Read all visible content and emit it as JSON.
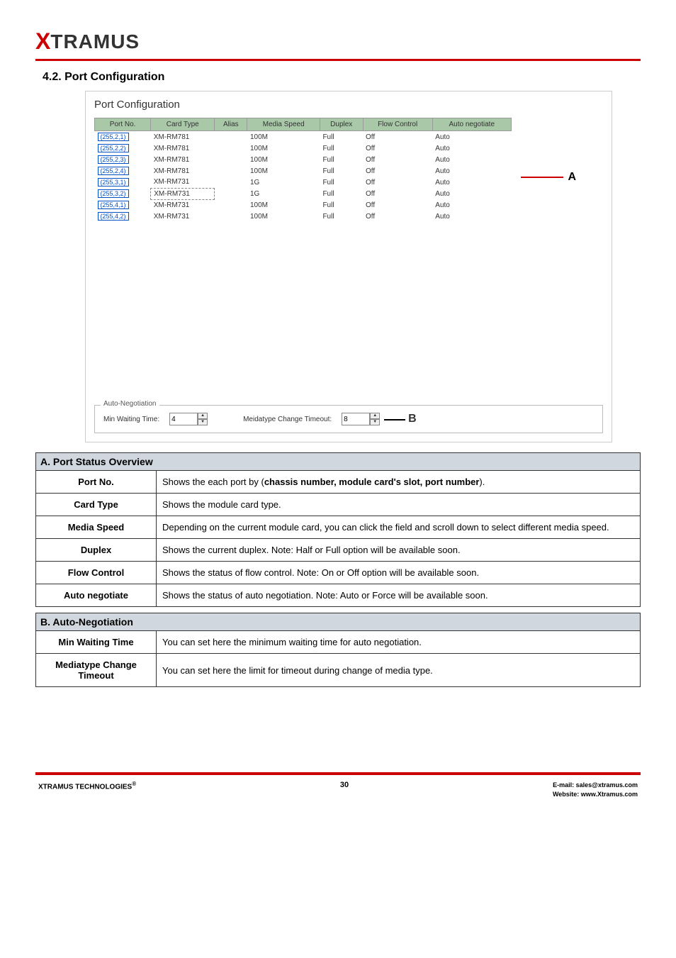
{
  "logo": {
    "brand_x": "X",
    "brand_rest": "TRAMUS"
  },
  "heading": "4.2. Port Configuration",
  "panel": {
    "title": "Port Configuration",
    "columns": [
      "Port No.",
      "Card Type",
      "Alias",
      "Media Speed",
      "Duplex",
      "Flow Control",
      "Auto negotiate"
    ],
    "rows": [
      {
        "port": "(255,2,1)",
        "card": "XM-RM781",
        "alias": "",
        "speed": "100M",
        "duplex": "Full",
        "flow": "Off",
        "neg": "Auto",
        "sel": false
      },
      {
        "port": "(255,2,2)",
        "card": "XM-RM781",
        "alias": "",
        "speed": "100M",
        "duplex": "Full",
        "flow": "Off",
        "neg": "Auto",
        "sel": false
      },
      {
        "port": "(255,2,3)",
        "card": "XM-RM781",
        "alias": "",
        "speed": "100M",
        "duplex": "Full",
        "flow": "Off",
        "neg": "Auto",
        "sel": false
      },
      {
        "port": "(255,2,4)",
        "card": "XM-RM781",
        "alias": "",
        "speed": "100M",
        "duplex": "Full",
        "flow": "Off",
        "neg": "Auto",
        "sel": false
      },
      {
        "port": "(255,3,1)",
        "card": "XM-RM731",
        "alias": "",
        "speed": "1G",
        "duplex": "Full",
        "flow": "Off",
        "neg": "Auto",
        "sel": false
      },
      {
        "port": "(255,3,2)",
        "card": "XM-RM731",
        "alias": "",
        "speed": "1G",
        "duplex": "Full",
        "flow": "Off",
        "neg": "Auto",
        "sel": true
      },
      {
        "port": "(255,4,1)",
        "card": "XM-RM731",
        "alias": "",
        "speed": "100M",
        "duplex": "Full",
        "flow": "Off",
        "neg": "Auto",
        "sel": false
      },
      {
        "port": "(255,4,2)",
        "card": "XM-RM731",
        "alias": "",
        "speed": "100M",
        "duplex": "Full",
        "flow": "Off",
        "neg": "Auto",
        "sel": false
      }
    ],
    "label_a": "A",
    "auto_neg": {
      "group_label": "Auto-Negotiation",
      "min_wait_label": "Min Waiting Time:",
      "min_wait_value": "4",
      "media_timeout_label": "Meidatype Change Timeout:",
      "media_timeout_value": "8",
      "label_b": "B"
    }
  },
  "table_a": {
    "header": "A. Port Status Overview",
    "rows": [
      {
        "label": "Port No.",
        "desc_pre": "Shows the each port by (",
        "desc_bold": "chassis number, module card's slot, port number",
        "desc_post": ")."
      },
      {
        "label": "Card Type",
        "desc": "Shows the module card type."
      },
      {
        "label": "Media Speed",
        "desc": "Depending on the current module card, you can click the field and scroll down to select different media speed."
      },
      {
        "label": "Duplex",
        "desc": "Shows the current duplex. Note: Half or Full option will be available soon."
      },
      {
        "label": "Flow Control",
        "desc": "Shows the status of flow control. Note: On or Off option will be available soon."
      },
      {
        "label": "Auto negotiate",
        "desc": "Shows the status of auto negotiation. Note: Auto or Force will be available soon."
      }
    ]
  },
  "table_b": {
    "header": "B. Auto-Negotiation",
    "rows": [
      {
        "label": "Min Waiting Time",
        "desc": "You can set here the minimum waiting time for auto negotiation."
      },
      {
        "label": "Mediatype Change Timeout",
        "desc": "You can set here the limit for timeout during change of media type."
      }
    ]
  },
  "footer": {
    "left": "XTRAMUS TECHNOLOGIES",
    "reg": "®",
    "page": "30",
    "email": "E-mail: sales@xtramus.com",
    "site": "Website:  www.Xtramus.com"
  }
}
